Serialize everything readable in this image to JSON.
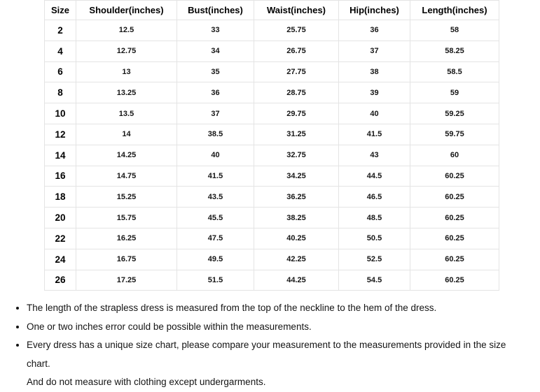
{
  "size_chart": {
    "columns": [
      "Size",
      "Shoulder(inches)",
      "Bust(inches)",
      "Waist(inches)",
      "Hip(inches)",
      "Length(inches)"
    ],
    "rows": [
      [
        "2",
        "12.5",
        "33",
        "25.75",
        "36",
        "58"
      ],
      [
        "4",
        "12.75",
        "34",
        "26.75",
        "37",
        "58.25"
      ],
      [
        "6",
        "13",
        "35",
        "27.75",
        "38",
        "58.5"
      ],
      [
        "8",
        "13.25",
        "36",
        "28.75",
        "39",
        "59"
      ],
      [
        "10",
        "13.5",
        "37",
        "29.75",
        "40",
        "59.25"
      ],
      [
        "12",
        "14",
        "38.5",
        "31.25",
        "41.5",
        "59.75"
      ],
      [
        "14",
        "14.25",
        "40",
        "32.75",
        "43",
        "60"
      ],
      [
        "16",
        "14.75",
        "41.5",
        "34.25",
        "44.5",
        "60.25"
      ],
      [
        "18",
        "15.25",
        "43.5",
        "36.25",
        "46.5",
        "60.25"
      ],
      [
        "20",
        "15.75",
        "45.5",
        "38.25",
        "48.5",
        "60.25"
      ],
      [
        "22",
        "16.25",
        "47.5",
        "40.25",
        "50.5",
        "60.25"
      ],
      [
        "24",
        "16.75",
        "49.5",
        "42.25",
        "52.5",
        "60.25"
      ],
      [
        "26",
        "17.25",
        "51.5",
        "44.25",
        "54.5",
        "60.25"
      ]
    ]
  },
  "notes": {
    "items": [
      "The length of the strapless dress is measured from the top of the neckline to the hem of the dress.",
      "One or two inches error could be possible within the measurements.",
      "Every dress has a unique size chart, please compare your measurement to the measurements provided in the size chart.\nAnd do not measure with clothing except undergarments."
    ]
  },
  "colors": {
    "border": "#e4e4e4",
    "text": "#141414",
    "background": "#ffffff"
  }
}
